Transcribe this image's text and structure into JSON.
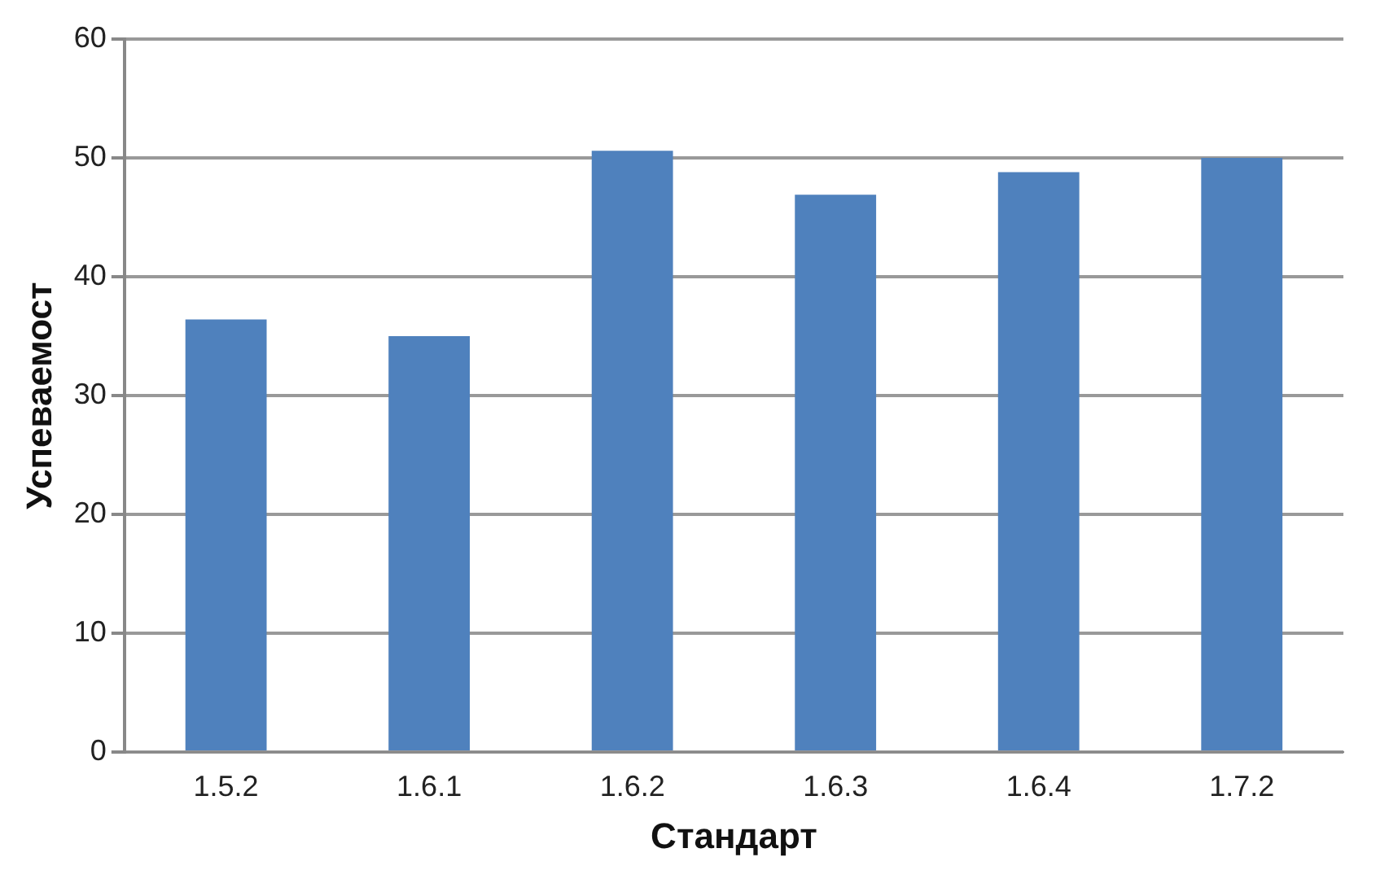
{
  "chart_data": {
    "type": "bar",
    "xlabel": "Стандарт",
    "ylabel": "Успеваемост",
    "categories": [
      "1.5.2",
      "1.6.1",
      "1.6.2",
      "1.6.3",
      "1.6.4",
      "1.7.2"
    ],
    "values": [
      36.4,
      35.0,
      50.6,
      46.9,
      48.8,
      50.0
    ],
    "color": "#4f81bd",
    "ylim": [
      0,
      60
    ],
    "yticks": [
      0,
      10,
      20,
      30,
      40,
      50,
      60
    ],
    "grid": "y",
    "legend": false
  }
}
